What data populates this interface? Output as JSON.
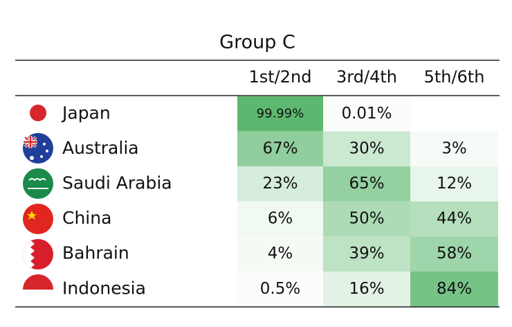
{
  "header": {
    "title": "Group C"
  },
  "table": {
    "columns": [
      "1st/2nd",
      "3rd/4th",
      "5th/6th"
    ],
    "rows": [
      {
        "country": "Japan",
        "cells": [
          "99.99%",
          "0.01%",
          null
        ]
      },
      {
        "country": "Australia",
        "cells": [
          "67%",
          "30%",
          "3%"
        ]
      },
      {
        "country": "Saudi Arabia",
        "cells": [
          "23%",
          "65%",
          "12%"
        ]
      },
      {
        "country": "China",
        "cells": [
          "6%",
          "50%",
          "44%"
        ]
      },
      {
        "country": "Bahrain",
        "cells": [
          "4%",
          "39%",
          "58%"
        ]
      },
      {
        "country": "Indonesia",
        "cells": [
          "0.5%",
          "16%",
          "84%"
        ]
      }
    ],
    "high_color": "#5cb86f",
    "low_color": "#fbfdfb"
  }
}
